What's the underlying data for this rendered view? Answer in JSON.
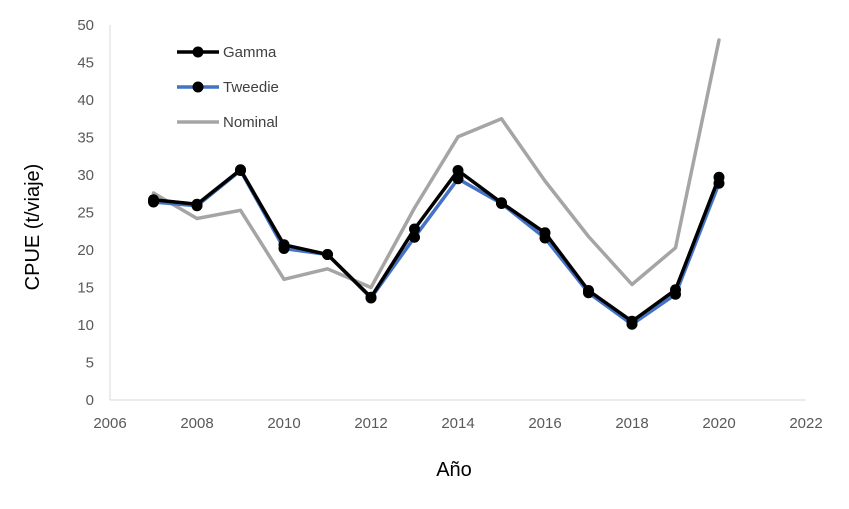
{
  "chart_data": {
    "type": "line",
    "xlabel": "Año",
    "ylabel": "CPUE (t/viaje)",
    "xlim": [
      2006,
      2022
    ],
    "ylim": [
      0,
      50
    ],
    "x_ticks": [
      2006,
      2008,
      2010,
      2012,
      2014,
      2016,
      2018,
      2020,
      2022
    ],
    "y_ticks": [
      0,
      5,
      10,
      15,
      20,
      25,
      30,
      35,
      40,
      45,
      50
    ],
    "grid": false,
    "legend_position": "top-left",
    "series": [
      {
        "name": "Nominal",
        "color": "#a5a5a5",
        "markers": false,
        "x": [
          2007,
          2008,
          2009,
          2010,
          2011,
          2012,
          2013,
          2014,
          2015,
          2016,
          2017,
          2018,
          2019,
          2020
        ],
        "y": [
          27.6,
          24.2,
          25.3,
          16.1,
          17.5,
          15.0,
          25.6,
          35.1,
          37.5,
          29.2,
          21.8,
          15.4,
          20.3,
          48.0
        ]
      },
      {
        "name": "Tweedie",
        "color": "#4472c4",
        "markers": true,
        "x": [
          2007,
          2008,
          2009,
          2010,
          2011,
          2012,
          2013,
          2014,
          2015,
          2016,
          2017,
          2018,
          2019,
          2020
        ],
        "y": [
          26.4,
          25.9,
          30.6,
          20.2,
          19.4,
          13.6,
          21.7,
          29.5,
          26.2,
          21.6,
          14.3,
          10.1,
          14.1,
          28.9
        ]
      },
      {
        "name": "Gamma",
        "color": "#000000",
        "markers": true,
        "x": [
          2007,
          2008,
          2009,
          2010,
          2011,
          2012,
          2013,
          2014,
          2015,
          2016,
          2017,
          2018,
          2019,
          2020
        ],
        "y": [
          26.7,
          26.1,
          30.7,
          20.7,
          19.4,
          13.7,
          22.8,
          30.6,
          26.3,
          22.3,
          14.6,
          10.5,
          14.7,
          29.7
        ]
      }
    ],
    "legend_order": [
      "Gamma",
      "Tweedie",
      "Nominal"
    ]
  }
}
